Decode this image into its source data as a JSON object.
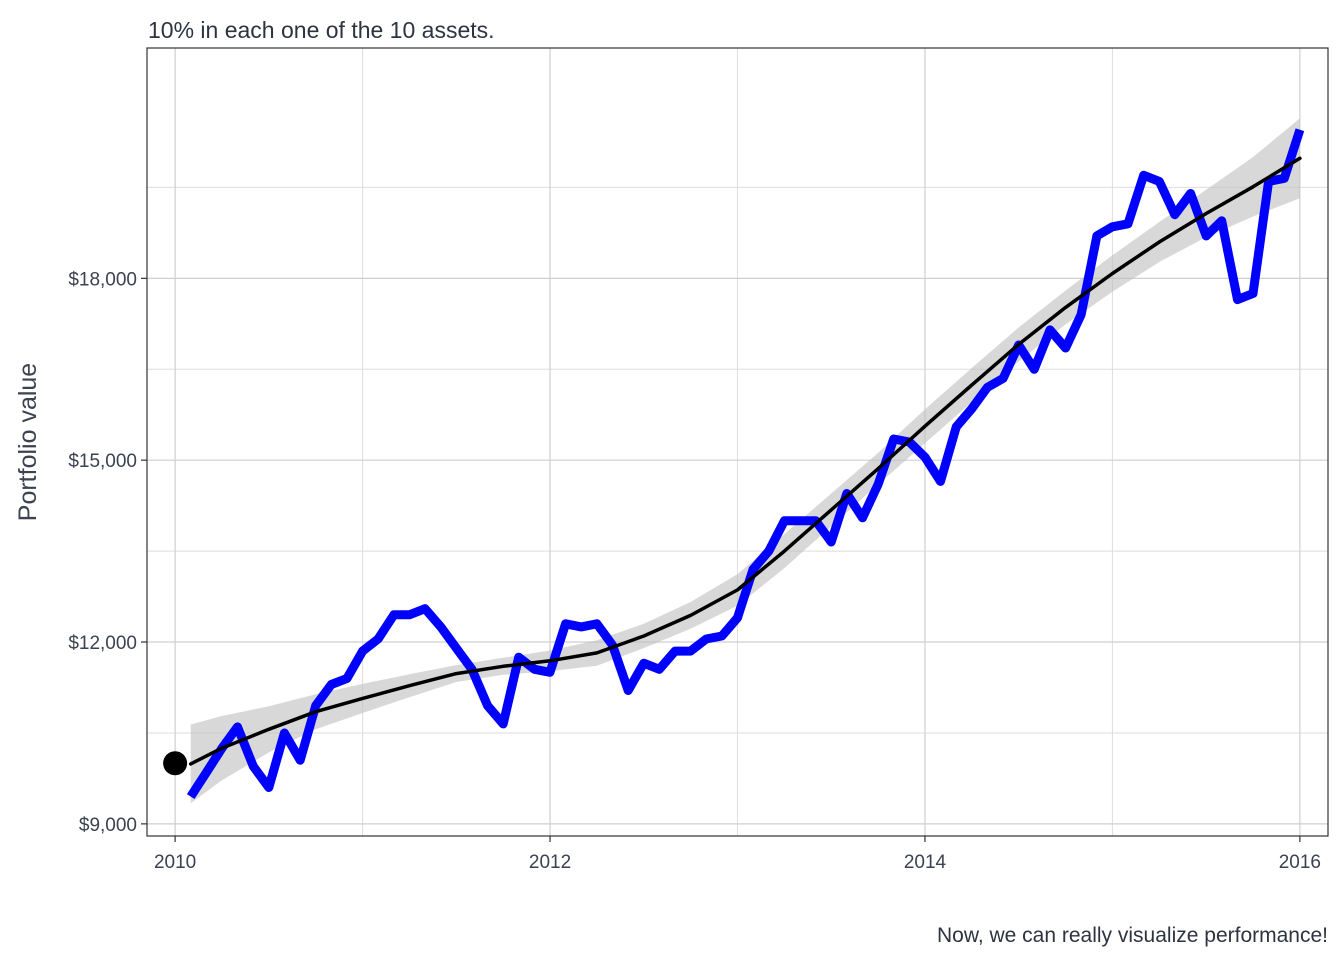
{
  "chart_data": {
    "type": "line",
    "title": "10% in each one of the 10 assets.",
    "caption": "Now, we can really visualize performance!",
    "xlabel": "",
    "ylabel": "Portfolio value",
    "xlim": [
      2009.85,
      2016.15
    ],
    "ylim": [
      8800,
      21800
    ],
    "x_ticks": [
      2010,
      2012,
      2014,
      2016
    ],
    "x_tick_labels": [
      "2010",
      "2012",
      "2014",
      "2016"
    ],
    "y_ticks": [
      9000,
      12000,
      15000,
      18000
    ],
    "y_tick_labels": [
      "$9,000",
      "$12,000",
      "$15,000",
      "$18,000"
    ],
    "x_minor_ticks": [
      2011,
      2013,
      2015
    ],
    "y_minor_ticks": [
      10500,
      13500,
      16500,
      19500
    ],
    "grid": true,
    "legend": "none",
    "start_point": {
      "x": 2010.0,
      "y": 10000,
      "color": "#000000"
    },
    "series": [
      {
        "kind": "portfolio",
        "color": "#0000ff",
        "x": [
          2010.083,
          2010.167,
          2010.25,
          2010.333,
          2010.417,
          2010.5,
          2010.583,
          2010.667,
          2010.75,
          2010.833,
          2010.917,
          2011.0,
          2011.083,
          2011.167,
          2011.25,
          2011.333,
          2011.417,
          2011.5,
          2011.583,
          2011.667,
          2011.75,
          2011.833,
          2011.917,
          2012.0,
          2012.083,
          2012.167,
          2012.25,
          2012.333,
          2012.417,
          2012.5,
          2012.583,
          2012.667,
          2012.75,
          2012.833,
          2012.917,
          2013.0,
          2013.083,
          2013.167,
          2013.25,
          2013.333,
          2013.417,
          2013.5,
          2013.583,
          2013.667,
          2013.75,
          2013.833,
          2013.917,
          2014.0,
          2014.083,
          2014.167,
          2014.25,
          2014.333,
          2014.417,
          2014.5,
          2014.583,
          2014.667,
          2014.75,
          2014.833,
          2014.917,
          2015.0,
          2015.083,
          2015.167,
          2015.25,
          2015.333,
          2015.417,
          2015.5,
          2015.583,
          2015.667,
          2015.75,
          2015.833,
          2015.917,
          2016.0
        ],
        "y": [
          9450,
          9850,
          10250,
          10600,
          9950,
          9600,
          10500,
          10050,
          10950,
          11300,
          11400,
          11850,
          12050,
          12450,
          12450,
          12550,
          12250,
          11900,
          11550,
          10950,
          10650,
          11750,
          11550,
          11500,
          12300,
          12250,
          12300,
          11950,
          11200,
          11650,
          11550,
          11850,
          11850,
          12050,
          12100,
          12400,
          13200,
          13500,
          14000,
          14000,
          14000,
          13650,
          14450,
          14050,
          14600,
          15350,
          15300,
          15050,
          14650,
          15550,
          15850,
          16200,
          16350,
          16900,
          16500,
          17150,
          16850,
          17400,
          18700,
          18850,
          18900,
          19700,
          19600,
          19050,
          19400,
          18700,
          18950,
          17650,
          17750,
          19600,
          19650,
          20450
        ]
      },
      {
        "kind": "trend",
        "color": "#000000",
        "x": [
          2010.083,
          2010.25,
          2010.5,
          2010.75,
          2011.0,
          2011.25,
          2011.5,
          2011.75,
          2012.0,
          2012.25,
          2012.5,
          2012.75,
          2013.0,
          2013.25,
          2013.5,
          2013.75,
          2014.0,
          2014.25,
          2014.5,
          2014.75,
          2015.0,
          2015.25,
          2015.5,
          2015.75,
          2016.0
        ],
        "y": [
          9990,
          10250,
          10560,
          10850,
          11070,
          11280,
          11480,
          11600,
          11690,
          11820,
          12100,
          12440,
          12860,
          13500,
          14180,
          14860,
          15560,
          16240,
          16910,
          17520,
          18080,
          18600,
          19070,
          19510,
          19980
        ],
        "band_upper": [
          10640,
          10780,
          10940,
          11140,
          11310,
          11470,
          11620,
          11740,
          11860,
          12030,
          12300,
          12660,
          13120,
          13780,
          14450,
          15120,
          15840,
          16520,
          17190,
          17800,
          18380,
          18930,
          19460,
          20000,
          20640
        ],
        "band_lower": [
          9340,
          9720,
          10180,
          10560,
          10830,
          11090,
          11340,
          11460,
          11520,
          11610,
          11900,
          12220,
          12600,
          13220,
          13910,
          14600,
          15280,
          15960,
          16630,
          17240,
          17780,
          18270,
          18680,
          19020,
          19320
        ],
        "band_color": "#bebebe"
      }
    ]
  }
}
